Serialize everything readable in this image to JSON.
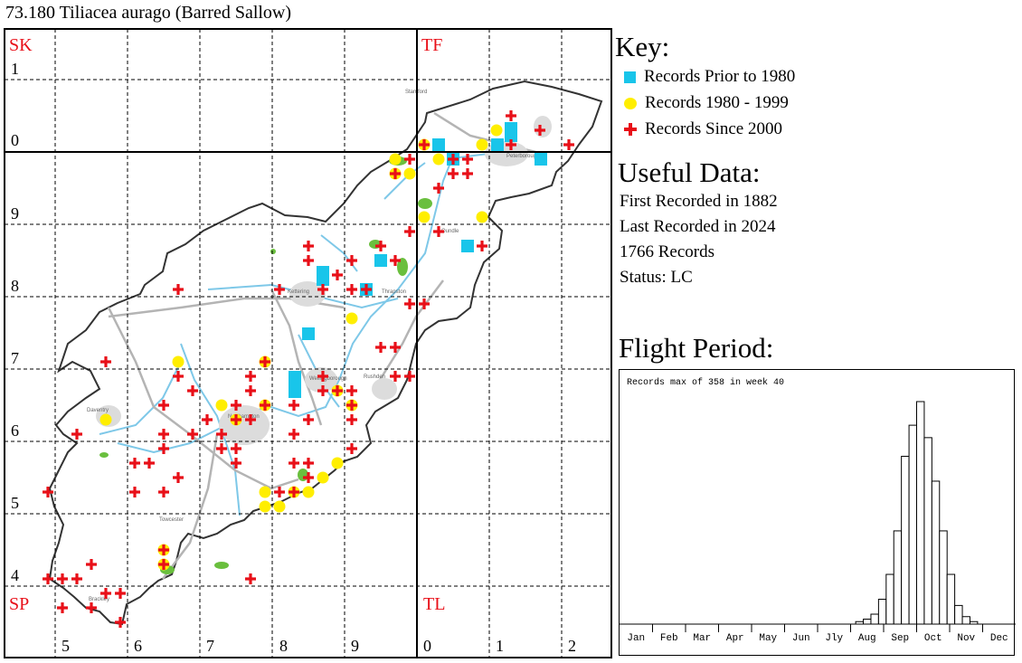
{
  "title": "73.180 Tiliacea aurago (Barred Sallow)",
  "map": {
    "squares": [
      "SK",
      "TF",
      "SP",
      "TL"
    ],
    "easting_labels": [
      "5",
      "6",
      "7",
      "8",
      "9",
      "0",
      "1",
      "2"
    ],
    "northing_labels": [
      "1",
      "0",
      "9",
      "8",
      "7",
      "6",
      "5",
      "4"
    ],
    "place_labels": [
      "Stamford",
      "Peterborough",
      "Oundle",
      "Kettering",
      "Thrapston",
      "Daventry",
      "Northampton",
      "Wellingborough",
      "Rushden",
      "Towcester",
      "Brackley"
    ],
    "colors": {
      "prior_1980": "#19c5ea",
      "1980_1999": "#ffee00",
      "since_2000": "#e80f18",
      "rivers": "#7ec8e8",
      "roads": "#b4b4b4",
      "boundary": "#333333",
      "woodland": "#6abf3e"
    }
  },
  "key": {
    "heading": "Key:",
    "items": [
      {
        "label": "Records Prior to 1980",
        "symbol": "blue-square-icon"
      },
      {
        "label": "Records 1980 - 1999",
        "symbol": "yellow-dot-icon"
      },
      {
        "label": "Records Since 2000",
        "symbol": "red-cross-icon"
      }
    ]
  },
  "useful_data": {
    "heading": "Useful Data:",
    "first": "First Recorded in 1882",
    "last": "Last Recorded in 2024",
    "count": "1766 Records",
    "status": "Status: LC"
  },
  "flight_period": {
    "heading": "Flight Period:",
    "caption": "Records max of 358 in week 40",
    "months": [
      "Jan",
      "Feb",
      "Mar",
      "Apr",
      "May",
      "Jun",
      "Jly",
      "Aug",
      "Sep",
      "Oct",
      "Nov",
      "Dec"
    ]
  },
  "chart_data": {
    "type": "bar",
    "title": "Records max of 358 in week 40",
    "x_unit": "week of year",
    "x": [
      32,
      33,
      34,
      35,
      36,
      37,
      38,
      39,
      40,
      41,
      42,
      43,
      44,
      45,
      46,
      47
    ],
    "values": [
      4,
      8,
      16,
      40,
      80,
      150,
      270,
      320,
      358,
      300,
      230,
      150,
      80,
      30,
      12,
      4
    ],
    "ylim": [
      0,
      358
    ],
    "categories": [
      "Jan",
      "Feb",
      "Mar",
      "Apr",
      "May",
      "Jun",
      "Jly",
      "Aug",
      "Sep",
      "Oct",
      "Nov",
      "Dec"
    ]
  }
}
